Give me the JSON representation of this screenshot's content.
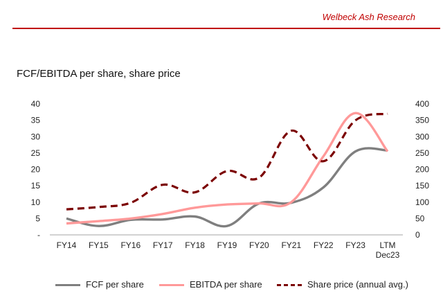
{
  "header": {
    "brand": "Welbeck Ash Research"
  },
  "chart_data": {
    "type": "line",
    "title": "FCF/EBITDA per share, share price",
    "categories": [
      "FY14",
      "FY15",
      "FY16",
      "FY17",
      "FY18",
      "FY19",
      "FY20",
      "FY21",
      "FY22",
      "FY23",
      "LTM Dec23"
    ],
    "left_axis": {
      "range": [
        0,
        40
      ],
      "ticks": [
        "-",
        "5",
        "10",
        "15",
        "20",
        "25",
        "30",
        "35",
        "40"
      ]
    },
    "right_axis": {
      "range": [
        0,
        400
      ],
      "ticks": [
        "0",
        "50",
        "100",
        "150",
        "200",
        "250",
        "300",
        "350",
        "400"
      ]
    },
    "series": [
      {
        "name": "FCF per share",
        "axis": "left",
        "color": "#7f7f7f",
        "style": "solid",
        "values": [
          5.0,
          2.7,
          4.6,
          4.7,
          5.6,
          2.7,
          9.6,
          9.8,
          14.5,
          25.5,
          25.8
        ]
      },
      {
        "name": "EBITDA per share",
        "axis": "left",
        "color": "#ff9999",
        "style": "solid",
        "values": [
          3.5,
          4.2,
          5.0,
          6.4,
          8.3,
          9.3,
          9.6,
          10.0,
          24.0,
          37.2,
          25.5
        ]
      },
      {
        "name": "Share price (annual avg.)",
        "axis": "right",
        "color": "#7b0000",
        "style": "dashed",
        "values": [
          78,
          85,
          98,
          153,
          130,
          195,
          175,
          318,
          225,
          350,
          370
        ]
      }
    ],
    "legend_position": "bottom"
  }
}
